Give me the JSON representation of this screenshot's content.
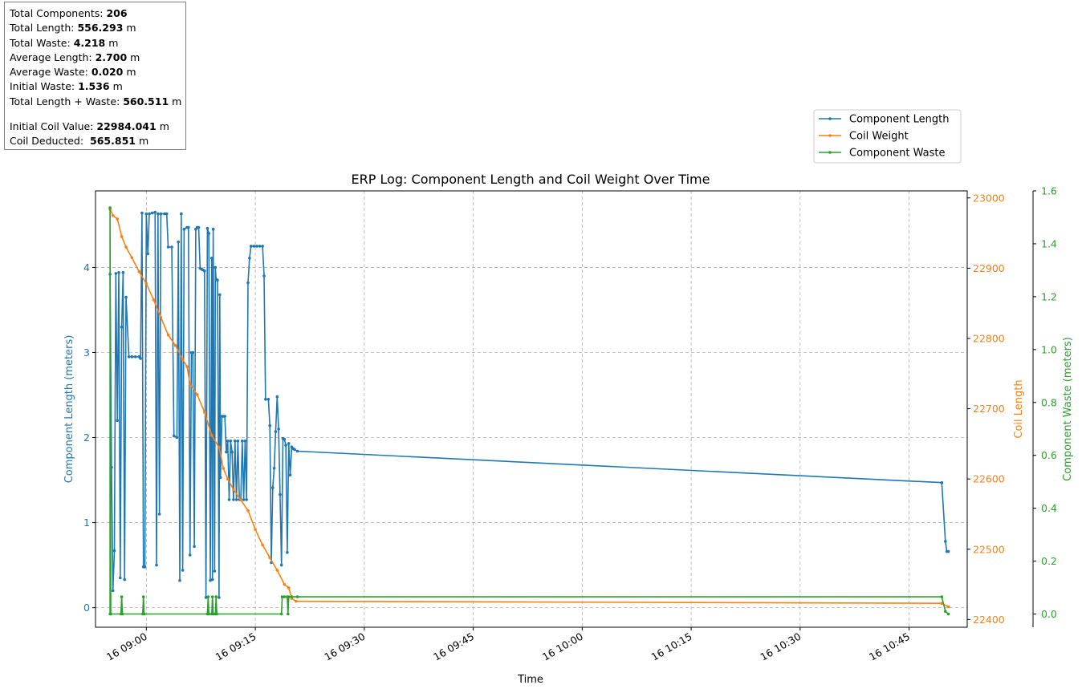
{
  "stats": {
    "total_components": {
      "label": "Total Components: ",
      "value": "206",
      "unit": ""
    },
    "total_length": {
      "label": "Total Length: ",
      "value": "556.293",
      "unit": " m"
    },
    "total_waste": {
      "label": "Total Waste: ",
      "value": "4.218",
      "unit": " m"
    },
    "average_length": {
      "label": "Average Length: ",
      "value": "2.700",
      "unit": " m"
    },
    "average_waste": {
      "label": "Average Waste: ",
      "value": "0.020",
      "unit": " m"
    },
    "initial_waste": {
      "label": "Initial Waste: ",
      "value": "1.536",
      "unit": " m"
    },
    "total_length_waste": {
      "label": "Total Length + Waste: ",
      "value": "560.511",
      "unit": " m"
    },
    "initial_coil": {
      "label": "Initial Coil Value: ",
      "value": "22984.041",
      "unit": " m"
    },
    "coil_deducted": {
      "label": "Coil Deducted:  ",
      "value": "565.851",
      "unit": " m"
    }
  },
  "chart_data": {
    "type": "line",
    "title": "ERP Log: Component Length and Coil Weight Over Time",
    "xlabel": "Time",
    "x_axis": {
      "range": [
        "08:53:00",
        "10:53:00"
      ],
      "ticks": [
        "16 09:00",
        "16 09:15",
        "16 09:30",
        "16 09:45",
        "16 10:00",
        "16 10:15",
        "16 10:30",
        "16 10:45"
      ],
      "tick_times": [
        "09:00:00",
        "09:15:00",
        "09:30:00",
        "09:45:00",
        "10:00:00",
        "10:15:00",
        "10:30:00",
        "10:45:00"
      ]
    },
    "y_left": {
      "label": "Component Length (meters)",
      "range": [
        -0.23,
        4.9
      ],
      "ticks": [
        0,
        1,
        2,
        3,
        4
      ],
      "color": "#1f77b4"
    },
    "y_right": {
      "label": "Coil Length",
      "range": [
        22389,
        23010
      ],
      "ticks": [
        22400,
        22500,
        22600,
        22700,
        22800,
        22900,
        23000
      ],
      "color": "#ff7f0e"
    },
    "y_right2": {
      "label": "Component Waste (meters)",
      "range": [
        -0.05,
        1.6
      ],
      "ticks": [
        0.0,
        0.2,
        0.4,
        0.6,
        0.8,
        1.0,
        1.2,
        1.4,
        1.6
      ],
      "color": "#2ca02c"
    },
    "grid": true,
    "legend_position": "top-right, above plot",
    "series": [
      {
        "name": "Component Length",
        "axis": "y_left",
        "color": "#1f77b4",
        "points": [
          [
            "08:55:00",
            3.92
          ],
          [
            "08:55:12",
            1.65
          ],
          [
            "08:55:24",
            0.2
          ],
          [
            "08:55:36",
            0.67
          ],
          [
            "08:55:48",
            3.93
          ],
          [
            "08:56:00",
            2.2
          ],
          [
            "08:56:12",
            3.94
          ],
          [
            "08:56:24",
            0.35
          ],
          [
            "08:56:36",
            3.3
          ],
          [
            "08:56:48",
            3.94
          ],
          [
            "08:57:00",
            0.33
          ],
          [
            "08:57:12",
            3.65
          ],
          [
            "08:57:36",
            2.95
          ],
          [
            "08:58:00",
            2.95
          ],
          [
            "08:58:30",
            2.95
          ],
          [
            "08:59:00",
            2.95
          ],
          [
            "08:59:12",
            2.93
          ],
          [
            "08:59:24",
            4.64
          ],
          [
            "08:59:36",
            0.48
          ],
          [
            "08:59:48",
            0.48
          ],
          [
            "09:00:00",
            4.63
          ],
          [
            "09:00:12",
            4.16
          ],
          [
            "09:00:24",
            4.63
          ],
          [
            "09:00:48",
            4.64
          ],
          [
            "09:01:12",
            4.65
          ],
          [
            "09:01:24",
            0.5
          ],
          [
            "09:01:36",
            4.63
          ],
          [
            "09:01:48",
            1.1
          ],
          [
            "09:02:00",
            4.63
          ],
          [
            "09:02:30",
            4.63
          ],
          [
            "09:02:48",
            4.63
          ],
          [
            "09:03:00",
            4.24
          ],
          [
            "09:03:30",
            4.24
          ],
          [
            "09:03:48",
            2.02
          ],
          [
            "09:04:12",
            2.0
          ],
          [
            "09:04:24",
            4.3
          ],
          [
            "09:04:36",
            0.32
          ],
          [
            "09:04:48",
            4.63
          ],
          [
            "09:05:00",
            0.44
          ],
          [
            "09:05:12",
            4.45
          ],
          [
            "09:05:36",
            4.47
          ],
          [
            "09:05:48",
            4.47
          ],
          [
            "09:06:00",
            0.62
          ],
          [
            "09:06:12",
            3.0
          ],
          [
            "09:06:24",
            3.0
          ],
          [
            "09:06:36",
            0.72
          ],
          [
            "09:06:48",
            4.45
          ],
          [
            "09:07:00",
            4.47
          ],
          [
            "09:07:12",
            4.47
          ],
          [
            "09:07:24",
            3.99
          ],
          [
            "09:07:36",
            3.98
          ],
          [
            "09:07:48",
            3.97
          ],
          [
            "09:08:00",
            3.96
          ],
          [
            "09:08:12",
            0.12
          ],
          [
            "09:08:24",
            4.46
          ],
          [
            "09:08:36",
            4.4
          ],
          [
            "09:08:48",
            0.32
          ],
          [
            "09:09:00",
            4.11
          ],
          [
            "09:09:06",
            0.33
          ],
          [
            "09:09:12",
            4.45
          ],
          [
            "09:09:24",
            0.43
          ],
          [
            "09:09:30",
            4.0
          ],
          [
            "09:09:36",
            3.86
          ],
          [
            "09:09:48",
            3.85
          ],
          [
            "09:10:00",
            0.12
          ],
          [
            "09:10:06",
            3.68
          ],
          [
            "09:10:12",
            1.53
          ],
          [
            "09:10:24",
            2.25
          ],
          [
            "09:10:36",
            2.25
          ],
          [
            "09:10:48",
            2.25
          ],
          [
            "09:11:00",
            1.83
          ],
          [
            "09:11:12",
            1.96
          ],
          [
            "09:11:24",
            1.27
          ],
          [
            "09:11:36",
            1.96
          ],
          [
            "09:11:48",
            1.83
          ],
          [
            "09:12:00",
            1.27
          ],
          [
            "09:12:12",
            1.96
          ],
          [
            "09:12:24",
            1.27
          ],
          [
            "09:12:36",
            1.96
          ],
          [
            "09:12:48",
            1.27
          ],
          [
            "09:13:00",
            1.27
          ],
          [
            "09:13:12",
            1.96
          ],
          [
            "09:13:24",
            1.27
          ],
          [
            "09:13:36",
            1.96
          ],
          [
            "09:13:48",
            1.27
          ],
          [
            "09:14:00",
            3.82
          ],
          [
            "09:14:12",
            4.11
          ],
          [
            "09:14:24",
            4.25
          ],
          [
            "09:14:48",
            4.25
          ],
          [
            "09:15:12",
            4.25
          ],
          [
            "09:15:36",
            4.25
          ],
          [
            "09:16:00",
            4.25
          ],
          [
            "09:16:12",
            3.9
          ],
          [
            "09:16:24",
            2.45
          ],
          [
            "09:16:48",
            2.45
          ],
          [
            "09:17:00",
            2.14
          ],
          [
            "09:17:12",
            0.53
          ],
          [
            "09:17:24",
            1.41
          ],
          [
            "09:17:36",
            1.64
          ],
          [
            "09:17:48",
            2.07
          ],
          [
            "09:18:00",
            2.48
          ],
          [
            "09:18:12",
            2.1
          ],
          [
            "09:18:24",
            1.33
          ],
          [
            "09:18:36",
            0.5
          ],
          [
            "09:18:48",
            1.99
          ],
          [
            "09:19:00",
            1.98
          ],
          [
            "09:19:12",
            1.91
          ],
          [
            "09:19:24",
            0.65
          ],
          [
            "09:19:36",
            1.93
          ],
          [
            "09:19:48",
            1.56
          ],
          [
            "09:20:00",
            1.89
          ],
          [
            "09:20:12",
            1.87
          ],
          [
            "09:20:24",
            1.86
          ],
          [
            "09:20:48",
            1.84
          ],
          [
            "10:49:30",
            1.47
          ],
          [
            "10:50:00",
            0.78
          ],
          [
            "10:50:12",
            0.66
          ],
          [
            "10:50:24",
            0.66
          ]
        ]
      },
      {
        "name": "Coil Weight",
        "axis": "y_right",
        "color": "#ff7f0e",
        "points": [
          [
            "08:55:00",
            22984
          ],
          [
            "08:55:24",
            22975
          ],
          [
            "08:56:00",
            22970
          ],
          [
            "08:56:36",
            22945
          ],
          [
            "08:57:12",
            22930
          ],
          [
            "08:58:00",
            22915
          ],
          [
            "08:59:00",
            22895
          ],
          [
            "09:00:00",
            22878
          ],
          [
            "09:01:00",
            22855
          ],
          [
            "09:02:00",
            22830
          ],
          [
            "09:03:00",
            22805
          ],
          [
            "09:04:00",
            22790
          ],
          [
            "09:05:00",
            22770
          ],
          [
            "09:05:36",
            22760
          ],
          [
            "09:06:00",
            22735
          ],
          [
            "09:07:00",
            22720
          ],
          [
            "09:08:00",
            22695
          ],
          [
            "09:09:00",
            22662
          ],
          [
            "09:10:00",
            22645
          ],
          [
            "09:10:36",
            22615
          ],
          [
            "09:11:12",
            22600
          ],
          [
            "09:12:00",
            22585
          ],
          [
            "09:13:00",
            22570
          ],
          [
            "09:14:00",
            22555
          ],
          [
            "09:15:00",
            22528
          ],
          [
            "09:16:00",
            22506
          ],
          [
            "09:17:00",
            22488
          ],
          [
            "09:18:00",
            22470
          ],
          [
            "09:19:00",
            22450
          ],
          [
            "09:19:36",
            22445
          ],
          [
            "09:20:00",
            22430
          ],
          [
            "09:20:36",
            22426
          ],
          [
            "10:49:30",
            22423
          ],
          [
            "10:50:24",
            22418
          ]
        ]
      },
      {
        "name": "Component Waste",
        "axis": "y_right2",
        "color": "#2ca02c",
        "points": [
          [
            "08:55:00",
            0.0
          ],
          [
            "08:55:00",
            1.536
          ],
          [
            "08:55:06",
            0.0
          ],
          [
            "08:56:30",
            0.0
          ],
          [
            "08:56:36",
            0.065
          ],
          [
            "08:56:42",
            0.0
          ],
          [
            "08:59:30",
            0.0
          ],
          [
            "08:59:36",
            0.065
          ],
          [
            "08:59:42",
            0.0
          ],
          [
            "09:08:24",
            0.0
          ],
          [
            "09:08:30",
            0.065
          ],
          [
            "09:08:36",
            0.0
          ],
          [
            "09:09:00",
            0.0
          ],
          [
            "09:09:06",
            0.065
          ],
          [
            "09:09:12",
            0.0
          ],
          [
            "09:09:30",
            0.0
          ],
          [
            "09:09:36",
            0.065
          ],
          [
            "09:09:42",
            0.0
          ],
          [
            "09:18:36",
            0.0
          ],
          [
            "09:18:42",
            0.065
          ],
          [
            "09:19:00",
            0.065
          ],
          [
            "09:19:24",
            0.065
          ],
          [
            "09:19:30",
            0.0
          ],
          [
            "09:19:36",
            0.065
          ],
          [
            "09:20:00",
            0.065
          ],
          [
            "09:20:48",
            0.065
          ],
          [
            "10:49:30",
            0.065
          ],
          [
            "10:50:00",
            0.01
          ],
          [
            "10:50:24",
            0.0
          ]
        ]
      }
    ]
  }
}
